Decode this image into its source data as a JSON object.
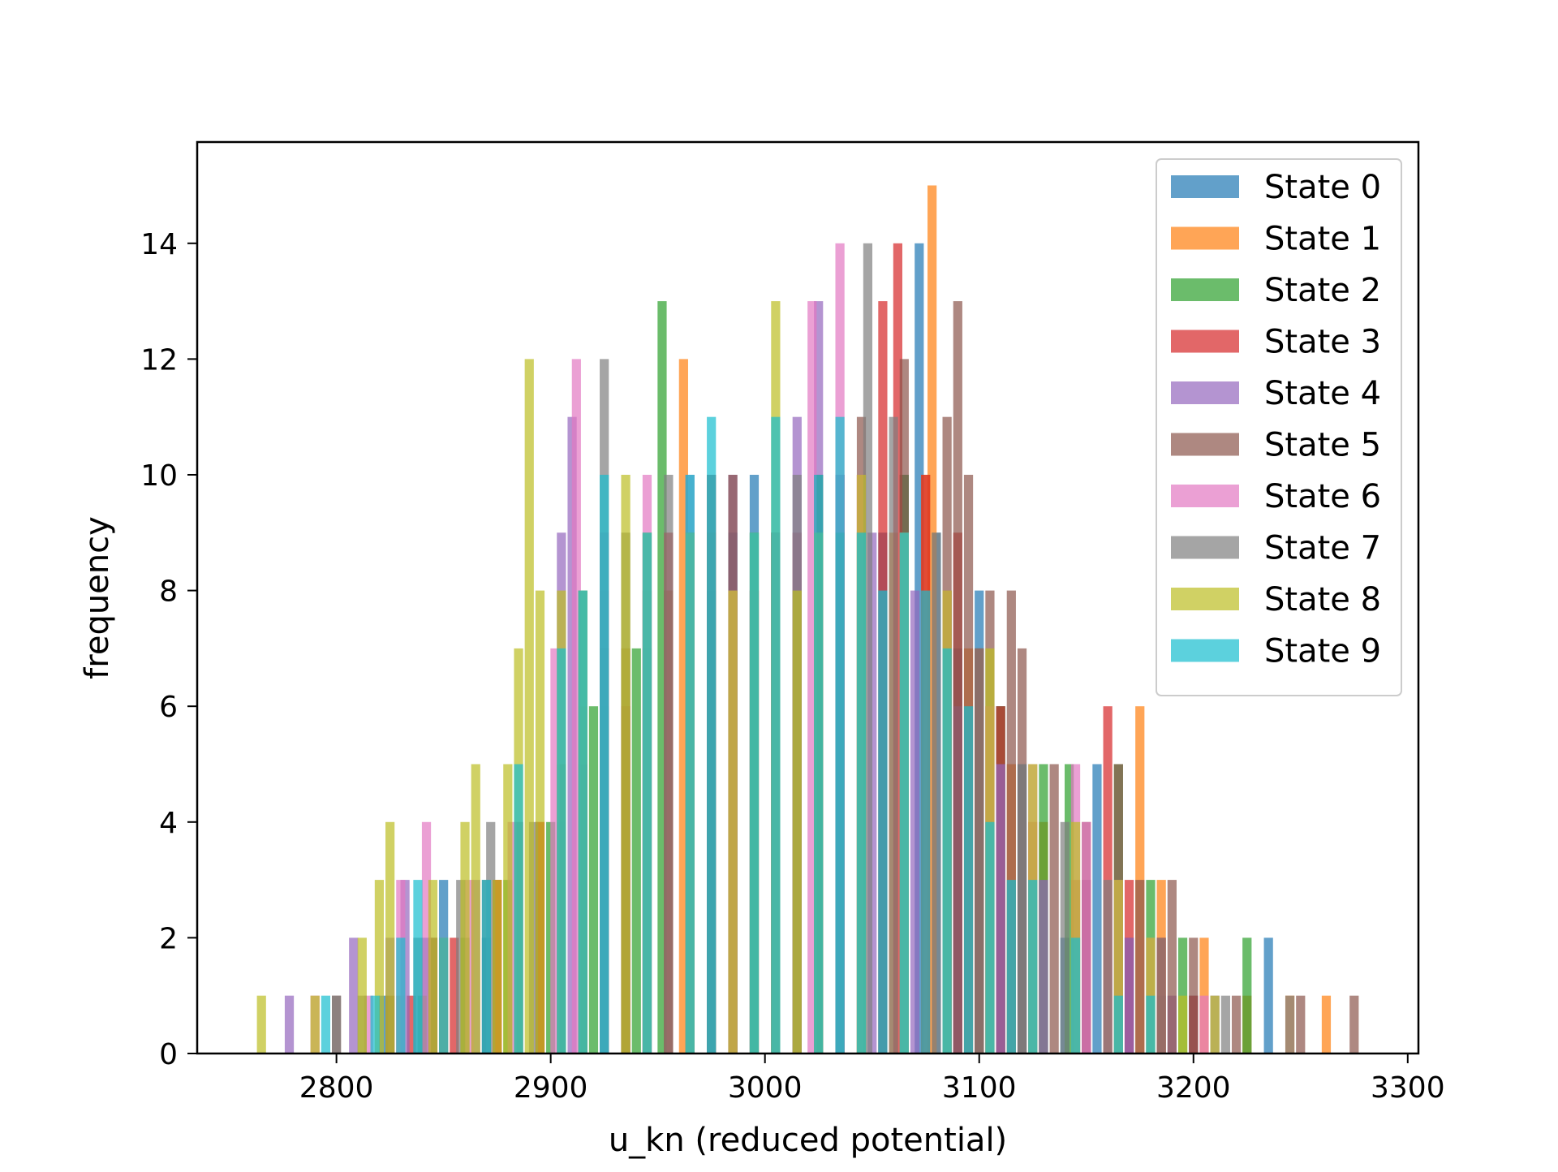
{
  "chart_data": {
    "type": "bar",
    "subtype": "overlaid-histogram",
    "xlabel": "u_kn (reduced potential)",
    "ylabel": "frequency",
    "xlim": [
      2735,
      3305
    ],
    "ylim": [
      0,
      15.75
    ],
    "x_ticks": [
      2800,
      2900,
      3000,
      3100,
      3200,
      3300
    ],
    "y_ticks": [
      0,
      2,
      4,
      6,
      8,
      10,
      12,
      14
    ],
    "bar_alpha": 0.7,
    "grid": false,
    "legend_position": "top-right",
    "series": [
      {
        "name": "State 0",
        "color": "#1f77b4",
        "bins": [
          [
            2822,
            1
          ],
          [
            2842,
            2
          ],
          [
            2850,
            3
          ],
          [
            2870,
            2
          ],
          [
            2895,
            3
          ],
          [
            2905,
            4
          ],
          [
            2915,
            5
          ],
          [
            2925,
            6
          ],
          [
            2935,
            7
          ],
          [
            2945,
            7
          ],
          [
            2955,
            8
          ],
          [
            2965,
            9
          ],
          [
            2975,
            8
          ],
          [
            2985,
            9
          ],
          [
            2995,
            10
          ],
          [
            3005,
            9
          ],
          [
            3015,
            8
          ],
          [
            3025,
            9
          ],
          [
            3035,
            10
          ],
          [
            3045,
            8
          ],
          [
            3055,
            9
          ],
          [
            3065,
            10
          ],
          [
            3072,
            14
          ],
          [
            3080,
            9
          ],
          [
            3090,
            7
          ],
          [
            3100,
            8
          ],
          [
            3110,
            6
          ],
          [
            3120,
            5
          ],
          [
            3130,
            3
          ],
          [
            3140,
            2
          ],
          [
            3150,
            3
          ],
          [
            3155,
            5
          ],
          [
            3170,
            2
          ],
          [
            3185,
            1
          ],
          [
            3200,
            1
          ],
          [
            3235,
            2
          ]
        ]
      },
      {
        "name": "State 1",
        "color": "#ff7f0e",
        "bins": [
          [
            2830,
            1
          ],
          [
            2850,
            2
          ],
          [
            2875,
            3
          ],
          [
            2895,
            4
          ],
          [
            2915,
            6
          ],
          [
            2935,
            7
          ],
          [
            2955,
            8
          ],
          [
            2962,
            12
          ],
          [
            2975,
            9
          ],
          [
            2985,
            8
          ],
          [
            3005,
            9
          ],
          [
            3025,
            8
          ],
          [
            3045,
            10
          ],
          [
            3060,
            9
          ],
          [
            3075,
            10
          ],
          [
            3078,
            15
          ],
          [
            3085,
            8
          ],
          [
            3095,
            7
          ],
          [
            3105,
            6
          ],
          [
            3115,
            5
          ],
          [
            3130,
            4
          ],
          [
            3150,
            3
          ],
          [
            3175,
            6
          ],
          [
            3185,
            3
          ],
          [
            3205,
            2
          ],
          [
            3225,
            1
          ],
          [
            3245,
            1
          ],
          [
            3262,
            1
          ]
        ]
      },
      {
        "name": "State 2",
        "color": "#2ca02c",
        "bins": [
          [
            2840,
            1
          ],
          [
            2860,
            2
          ],
          [
            2880,
            3
          ],
          [
            2900,
            4
          ],
          [
            2920,
            6
          ],
          [
            2940,
            7
          ],
          [
            2952,
            13
          ],
          [
            2965,
            9
          ],
          [
            2985,
            8
          ],
          [
            3005,
            9
          ],
          [
            3025,
            10
          ],
          [
            3045,
            9
          ],
          [
            3065,
            10
          ],
          [
            3085,
            8
          ],
          [
            3100,
            7
          ],
          [
            3110,
            6
          ],
          [
            3130,
            5
          ],
          [
            3142,
            5
          ],
          [
            3165,
            5
          ],
          [
            3180,
            3
          ],
          [
            3195,
            2
          ],
          [
            3225,
            2
          ]
        ]
      },
      {
        "name": "State 3",
        "color": "#d62728",
        "bins": [
          [
            2835,
            1
          ],
          [
            2855,
            2
          ],
          [
            2875,
            3
          ],
          [
            2895,
            4
          ],
          [
            2915,
            5
          ],
          [
            2935,
            6
          ],
          [
            2955,
            9
          ],
          [
            2975,
            10
          ],
          [
            2995,
            8
          ],
          [
            3015,
            9
          ],
          [
            3035,
            10
          ],
          [
            3055,
            13
          ],
          [
            3062,
            14
          ],
          [
            3075,
            10
          ],
          [
            3090,
            9
          ],
          [
            3100,
            7
          ],
          [
            3110,
            6
          ],
          [
            3125,
            4
          ],
          [
            3145,
            3
          ],
          [
            3160,
            6
          ],
          [
            3170,
            3
          ],
          [
            3185,
            2
          ],
          [
            3200,
            1
          ]
        ]
      },
      {
        "name": "State 4",
        "color": "#9467bd",
        "bins": [
          [
            2778,
            1
          ],
          [
            2808,
            2
          ],
          [
            2825,
            2
          ],
          [
            2832,
            3
          ],
          [
            2845,
            2
          ],
          [
            2865,
            3
          ],
          [
            2885,
            4
          ],
          [
            2905,
            9
          ],
          [
            2910,
            11
          ],
          [
            2925,
            8
          ],
          [
            2945,
            9
          ],
          [
            2965,
            10
          ],
          [
            2985,
            10
          ],
          [
            2995,
            8
          ],
          [
            3015,
            11
          ],
          [
            3025,
            13
          ],
          [
            3035,
            10
          ],
          [
            3050,
            9
          ],
          [
            3070,
            8
          ],
          [
            3090,
            6
          ],
          [
            3110,
            5
          ],
          [
            3130,
            3
          ],
          [
            3150,
            3
          ],
          [
            3170,
            2
          ],
          [
            3190,
            1
          ],
          [
            3210,
            1
          ]
        ]
      },
      {
        "name": "State 5",
        "color": "#8c564b",
        "bins": [
          [
            2800,
            1
          ],
          [
            2825,
            1
          ],
          [
            2845,
            2
          ],
          [
            2870,
            3
          ],
          [
            2885,
            4
          ],
          [
            2905,
            5
          ],
          [
            2925,
            7
          ],
          [
            2945,
            8
          ],
          [
            2965,
            9
          ],
          [
            2985,
            10
          ],
          [
            3005,
            9
          ],
          [
            3025,
            10
          ],
          [
            3045,
            11
          ],
          [
            3065,
            12
          ],
          [
            3085,
            11
          ],
          [
            3090,
            13
          ],
          [
            3095,
            10
          ],
          [
            3105,
            8
          ],
          [
            3115,
            8
          ],
          [
            3120,
            7
          ],
          [
            3135,
            5
          ],
          [
            3150,
            4
          ],
          [
            3165,
            5
          ],
          [
            3175,
            3
          ],
          [
            3190,
            3
          ],
          [
            3200,
            2
          ],
          [
            3220,
            1
          ],
          [
            3250,
            1
          ],
          [
            3275,
            1
          ]
        ]
      },
      {
        "name": "State 6",
        "color": "#e377c2",
        "bins": [
          [
            2790,
            1
          ],
          [
            2815,
            1
          ],
          [
            2830,
            3
          ],
          [
            2842,
            4
          ],
          [
            2862,
            3
          ],
          [
            2882,
            4
          ],
          [
            2902,
            7
          ],
          [
            2912,
            12
          ],
          [
            2925,
            9
          ],
          [
            2945,
            10
          ],
          [
            2965,
            9
          ],
          [
            2985,
            8
          ],
          [
            3005,
            9
          ],
          [
            3022,
            13
          ],
          [
            3035,
            14
          ],
          [
            3045,
            10
          ],
          [
            3065,
            9
          ],
          [
            3085,
            8
          ],
          [
            3105,
            6
          ],
          [
            3125,
            5
          ],
          [
            3145,
            5
          ],
          [
            3150,
            4
          ],
          [
            3165,
            3
          ],
          [
            3180,
            2
          ],
          [
            3205,
            1
          ]
        ]
      },
      {
        "name": "State 7",
        "color": "#7f7f7f",
        "bins": [
          [
            2800,
            1
          ],
          [
            2812,
            1
          ],
          [
            2838,
            2
          ],
          [
            2858,
            3
          ],
          [
            2872,
            4
          ],
          [
            2892,
            4
          ],
          [
            2915,
            8
          ],
          [
            2925,
            12
          ],
          [
            2935,
            9
          ],
          [
            2955,
            10
          ],
          [
            2975,
            10
          ],
          [
            2995,
            9
          ],
          [
            3015,
            10
          ],
          [
            3035,
            9
          ],
          [
            3048,
            14
          ],
          [
            3060,
            11
          ],
          [
            3080,
            9
          ],
          [
            3100,
            7
          ],
          [
            3120,
            5
          ],
          [
            3140,
            4
          ],
          [
            3160,
            3
          ],
          [
            3185,
            2
          ],
          [
            3215,
            1
          ],
          [
            3245,
            1
          ]
        ]
      },
      {
        "name": "State 8",
        "color": "#bcbd22",
        "bins": [
          [
            2765,
            1
          ],
          [
            2790,
            1
          ],
          [
            2812,
            2
          ],
          [
            2820,
            3
          ],
          [
            2825,
            4
          ],
          [
            2845,
            3
          ],
          [
            2860,
            4
          ],
          [
            2865,
            5
          ],
          [
            2875,
            3
          ],
          [
            2880,
            5
          ],
          [
            2885,
            7
          ],
          [
            2890,
            12
          ],
          [
            2895,
            8
          ],
          [
            2905,
            8
          ],
          [
            2915,
            8
          ],
          [
            2935,
            10
          ],
          [
            2945,
            9
          ],
          [
            2965,
            9
          ],
          [
            2985,
            8
          ],
          [
            2995,
            9
          ],
          [
            3005,
            13
          ],
          [
            3015,
            8
          ],
          [
            3025,
            9
          ],
          [
            3045,
            10
          ],
          [
            3065,
            9
          ],
          [
            3085,
            8
          ],
          [
            3105,
            7
          ],
          [
            3125,
            5
          ],
          [
            3145,
            4
          ],
          [
            3165,
            3
          ],
          [
            3180,
            2
          ],
          [
            3195,
            1
          ],
          [
            3210,
            1
          ]
        ]
      },
      {
        "name": "State 9",
        "color": "#17becf",
        "bins": [
          [
            2795,
            1
          ],
          [
            2818,
            1
          ],
          [
            2830,
            2
          ],
          [
            2838,
            3
          ],
          [
            2850,
            2
          ],
          [
            2870,
            3
          ],
          [
            2885,
            5
          ],
          [
            2905,
            7
          ],
          [
            2915,
            8
          ],
          [
            2925,
            10
          ],
          [
            2945,
            9
          ],
          [
            2965,
            10
          ],
          [
            2975,
            11
          ],
          [
            2995,
            9
          ],
          [
            3005,
            11
          ],
          [
            3025,
            10
          ],
          [
            3035,
            11
          ],
          [
            3045,
            9
          ],
          [
            3055,
            8
          ],
          [
            3065,
            9
          ],
          [
            3075,
            8
          ],
          [
            3085,
            7
          ],
          [
            3095,
            6
          ],
          [
            3105,
            4
          ],
          [
            3115,
            3
          ],
          [
            3125,
            3
          ],
          [
            3145,
            2
          ],
          [
            3165,
            1
          ],
          [
            3180,
            1
          ]
        ]
      }
    ]
  }
}
